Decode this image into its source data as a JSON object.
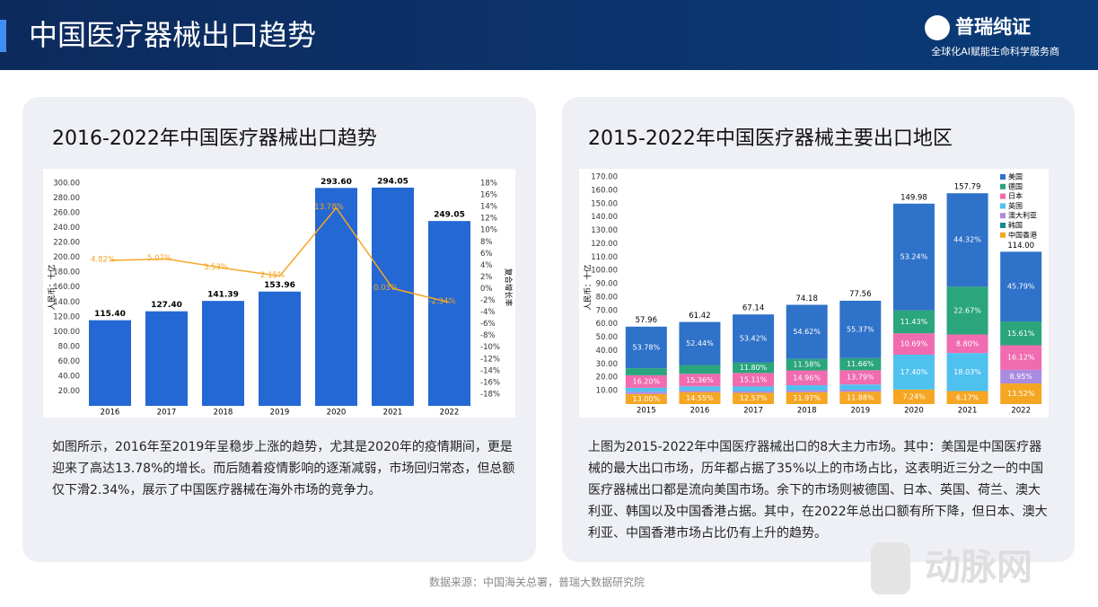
{
  "header": {
    "title": "中国医疗器械出口趋势",
    "logo": "普瑞纯证",
    "slogan": "全球化AI赋能生命科学服务商"
  },
  "chart_data": [
    {
      "type": "bar",
      "title": "2016-2022年中国医疗器械出口趋势",
      "categories": [
        "2016",
        "2017",
        "2018",
        "2019",
        "2020",
        "2021",
        "2022"
      ],
      "ylabel": "人民币：十亿",
      "y2label": "复合增长率",
      "ylim": [
        0,
        300
      ],
      "yticks": [
        {
          "value": 20,
          "label": "20.00"
        },
        {
          "value": 40,
          "label": "40.00"
        },
        {
          "value": 60,
          "label": "60.00"
        },
        {
          "value": 80,
          "label": "80.00"
        },
        {
          "value": 100,
          "label": "100.00"
        },
        {
          "value": 120,
          "label": "120.00"
        },
        {
          "value": 140,
          "label": "140.00"
        },
        {
          "value": 160,
          "label": "160.00"
        },
        {
          "value": 180,
          "label": "180.00"
        },
        {
          "value": 200,
          "label": "200.00"
        },
        {
          "value": 220,
          "label": "220.00"
        },
        {
          "value": 240,
          "label": "240.00"
        },
        {
          "value": 260,
          "label": "260.00"
        },
        {
          "value": 280,
          "label": "280.00"
        },
        {
          "value": 300,
          "label": "300.00"
        }
      ],
      "y2lim": [
        -20,
        18
      ],
      "y2ticks": [
        {
          "value": -18,
          "label": "-18%"
        },
        {
          "value": -16,
          "label": "-16%"
        },
        {
          "value": -14,
          "label": "-14%"
        },
        {
          "value": -12,
          "label": "-12%"
        },
        {
          "value": -10,
          "label": "-10%"
        },
        {
          "value": -8,
          "label": "-8%"
        },
        {
          "value": -6,
          "label": "-6%"
        },
        {
          "value": -4,
          "label": "-4%"
        },
        {
          "value": -2,
          "label": "-2%"
        },
        {
          "value": 0,
          "label": "0%"
        },
        {
          "value": 2,
          "label": "2%"
        },
        {
          "value": 4,
          "label": "4%"
        },
        {
          "value": 6,
          "label": "6%"
        },
        {
          "value": 8,
          "label": "8%"
        },
        {
          "value": 10,
          "label": "10%"
        },
        {
          "value": 12,
          "label": "12%"
        },
        {
          "value": 14,
          "label": "14%"
        },
        {
          "value": 16,
          "label": "16%"
        },
        {
          "value": 18,
          "label": "18%"
        }
      ],
      "series": [
        {
          "type": "bar",
          "color": "#2468d4",
          "values": [
            115.4,
            127.4,
            141.39,
            153.96,
            293.6,
            294.05,
            249.05
          ],
          "value_labels": [
            "115.40",
            "127.40",
            "141.39",
            "153.96",
            "293.60",
            "294.05",
            "249.05"
          ]
        },
        {
          "type": "line",
          "axis": "y2",
          "color": "#f5a623",
          "values": [
            4.82,
            5.07,
            3.53,
            2.15,
            13.78,
            0.03,
            -2.34
          ],
          "value_labels": [
            "4.82%",
            "5.07%",
            "3.53%",
            "2.15%",
            "13.78%",
            "0.03%",
            "-2.34%"
          ]
        }
      ],
      "description": "如图所示，2016年至2019年呈稳步上涨的趋势，尤其是2020年的疫情期间，更是迎来了高达13.78%的增长。而后随着疫情影响的逐渐减弱，市场回归常态，但总额仅下滑2.34%，展示了中国医疗器械在海外市场的竞争力。"
    },
    {
      "type": "stacked_bar",
      "title": "2015-2022年中国医疗器械主要出口地区",
      "categories": [
        "2015",
        "2016",
        "2017",
        "2018",
        "2019",
        "2020",
        "2021",
        "2022"
      ],
      "ylabel": "人民币：十亿",
      "ylim": [
        0,
        170
      ],
      "yticks": [
        {
          "value": 10,
          "label": "10.00"
        },
        {
          "value": 20,
          "label": "20.00"
        },
        {
          "value": 30,
          "label": "30.00"
        },
        {
          "value": 40,
          "label": "40.00"
        },
        {
          "value": 50,
          "label": "50.00"
        },
        {
          "value": 60,
          "label": "60.00"
        },
        {
          "value": 70,
          "label": "70.00"
        },
        {
          "value": 80,
          "label": "80.00"
        },
        {
          "value": 90,
          "label": "90.00"
        },
        {
          "value": 100,
          "label": "100.00"
        },
        {
          "value": 110,
          "label": "110.00"
        },
        {
          "value": 120,
          "label": "120.00"
        },
        {
          "value": 130,
          "label": "130.00"
        },
        {
          "value": 140,
          "label": "140.00"
        },
        {
          "value": 150,
          "label": "150.00"
        },
        {
          "value": 160,
          "label": "160.00"
        },
        {
          "value": 170,
          "label": "170.00"
        }
      ],
      "totals": [
        57.96,
        61.42,
        67.14,
        74.18,
        77.56,
        149.98,
        157.79,
        114
      ],
      "total_labels": [
        "57.96",
        "61.42",
        "67.14",
        "74.18",
        "77.56",
        "149.98",
        "157.79",
        "114.00"
      ],
      "series": [
        {
          "name": "美国",
          "color": "#2f72c9",
          "values": [
            53.78,
            52.44,
            53.42,
            54.62,
            55.37,
            53.24,
            44.32,
            45.79
          ],
          "value_labels": [
            "53.78%",
            "52.44%",
            "53.42%",
            "54.62%",
            "55.37%",
            "53.24%",
            "44.32%",
            "45.79%"
          ]
        },
        {
          "name": "德国",
          "color": "#2aa57c",
          "values": [
            9,
            10.65,
            11.8,
            11.58,
            11.66,
            11.43,
            22.67,
            15.61
          ],
          "value_labels": [
            null,
            null,
            "11.80%",
            "11.58%",
            "11.66%",
            "11.43%",
            "22.67%",
            "15.61%"
          ]
        },
        {
          "name": "日本",
          "color": "#f06bb0",
          "values": [
            16.2,
            15.36,
            15.11,
            14.96,
            13.79,
            10.69,
            8.8,
            16.12
          ],
          "value_labels": [
            "16.20%",
            "15.36%",
            "15.11%",
            "14.96%",
            "13.79%",
            "10.69%",
            "8.80%",
            "16.12%"
          ]
        },
        {
          "name": "英国",
          "color": "#4fc1ef",
          "values": [
            5,
            5,
            5,
            5,
            5,
            17.4,
            18.03,
            null
          ],
          "value_labels": [
            null,
            null,
            null,
            null,
            null,
            "17.40%",
            "18.03%",
            null
          ]
        },
        {
          "name": "澳大利亚",
          "color": "#a98be0",
          "values": [
            3,
            2,
            2,
            2,
            2,
            null,
            null,
            8.95
          ],
          "value_labels": [
            null,
            null,
            null,
            null,
            null,
            null,
            null,
            "8.95%"
          ]
        },
        {
          "name": "韩国",
          "color": "#178a8f",
          "values": [
            null,
            null,
            null,
            null,
            null,
            null,
            null,
            null
          ]
        },
        {
          "name": "中国香港",
          "color": "#f5a623",
          "values": [
            13,
            14.55,
            12.57,
            11.97,
            11.88,
            7.24,
            6.17,
            13.52
          ],
          "value_labels": [
            "13.00%",
            "14.55%",
            "12.57%",
            "11.97%",
            "11.88%",
            "7.24%",
            "6.17%",
            "13.52%"
          ]
        }
      ],
      "description": "上图为2015-2022年中国医疗器械出口的8大主力市场。其中：美国是中国医疗器械的最大出口市场，历年都占据了35%以上的市场占比，这表明近三分之一的中国医疗器械出口都是流向美国市场。余下的市场则被德国、日本、英国、荷兰、澳大利亚、韩国以及中国香港占据。其中，在2022年总出口额有所下降，但日本、澳大利亚、中国香港市场占比仍有上升的趋势。"
    }
  ],
  "source": "数据来源：中国海关总署，普瑞大数据研究院",
  "watermark": "动脉网"
}
